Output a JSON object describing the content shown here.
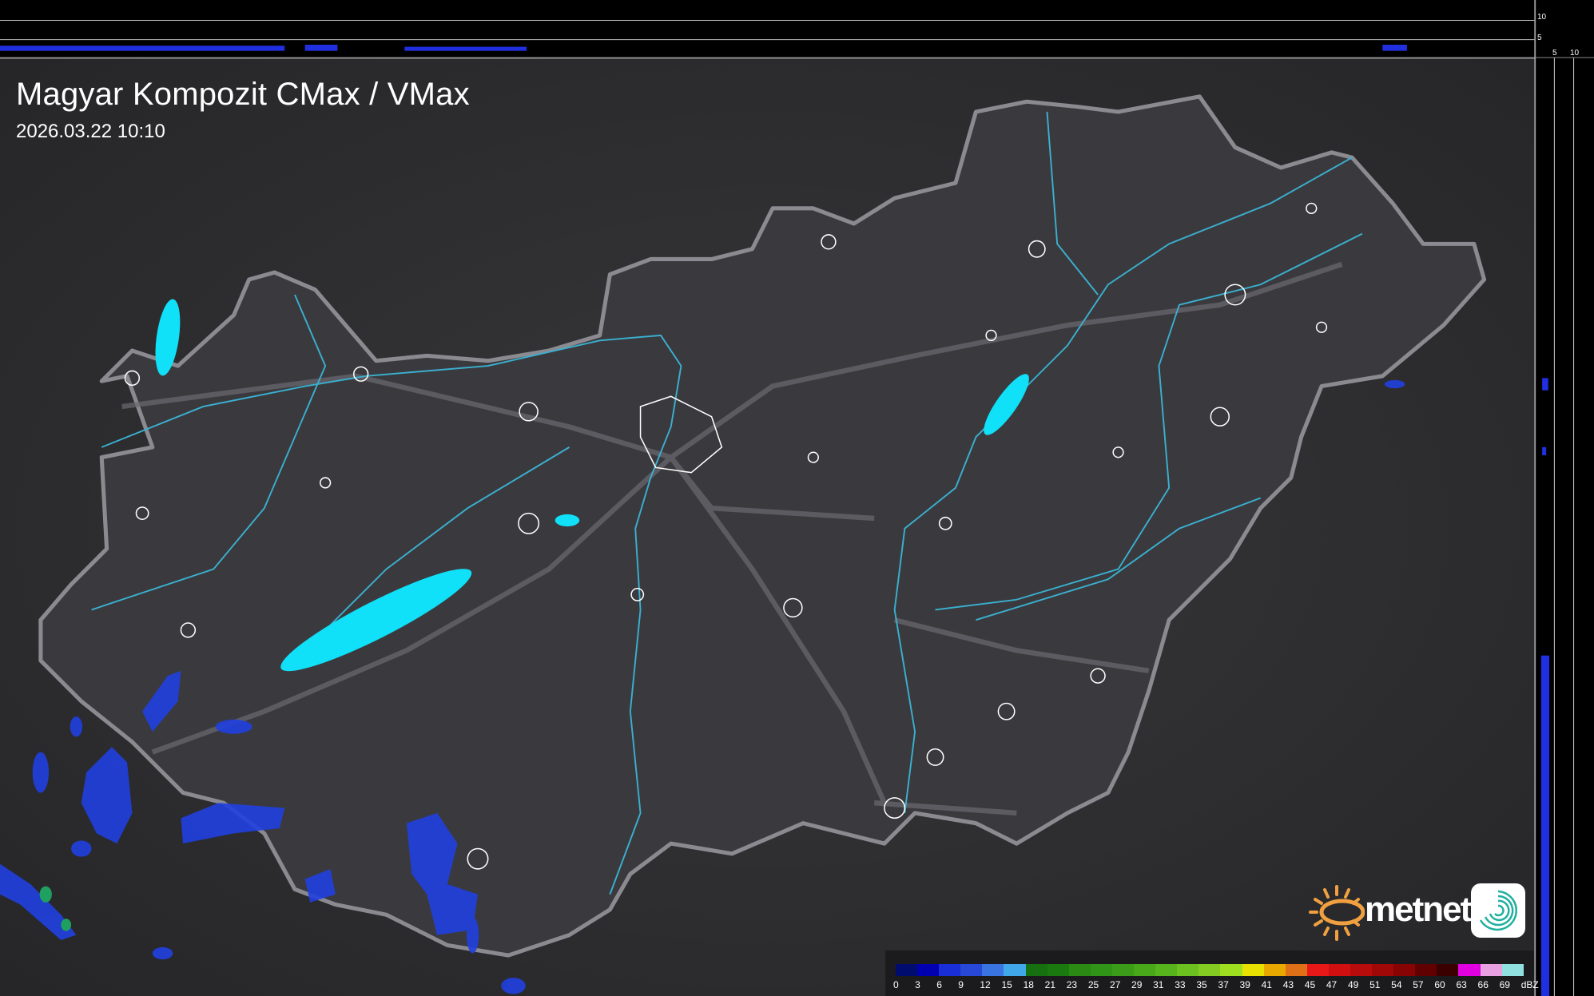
{
  "header": {
    "title": "Magyar Kompozit CMax / VMax",
    "timestamp": "2026.03.22 10:10"
  },
  "profile_axes": {
    "top_ticks": [
      "10",
      "5"
    ],
    "right_ticks": [
      "5",
      "10"
    ]
  },
  "legend": {
    "unit": "dBZ",
    "labels": [
      "0",
      "3",
      "6",
      "9",
      "12",
      "15",
      "18",
      "21",
      "23",
      "25",
      "27",
      "29",
      "31",
      "33",
      "35",
      "37",
      "39",
      "41",
      "43",
      "45",
      "47",
      "49",
      "51",
      "54",
      "57",
      "60",
      "63",
      "66",
      "69"
    ],
    "colors": [
      "#000c6e",
      "#0000b0",
      "#1a2ed8",
      "#2848d8",
      "#3a74e0",
      "#40a8e8",
      "#167010",
      "#1a7a10",
      "#2a8a14",
      "#309418",
      "#3a9c18",
      "#48a81a",
      "#58b41c",
      "#6cc020",
      "#84cc22",
      "#9ee020",
      "#e8e000",
      "#e8a800",
      "#e07018",
      "#e81818",
      "#d01010",
      "#b80c0c",
      "#a00808",
      "#880404",
      "#600000",
      "#3a0000",
      "#e000e0",
      "#e8a0e0",
      "#90e0e0"
    ]
  },
  "branding": {
    "logo_text": "metnet",
    "sun_color": "#f0a040",
    "icon_color": "#20b0a0"
  },
  "colors": {
    "lakes": "#10e0f8",
    "rivers": "#3ab0d0",
    "border": "#8a8a90",
    "country_fill": "#3a3a3e",
    "radar": "#2040e0"
  }
}
